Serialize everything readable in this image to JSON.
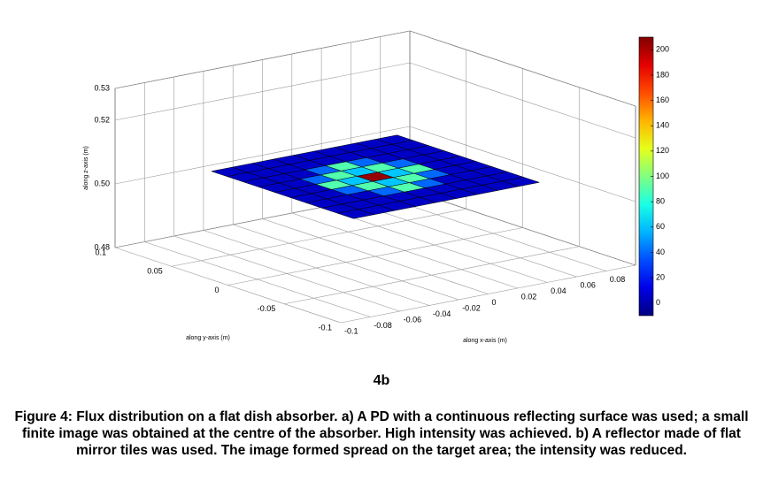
{
  "chart_data": {
    "type": "surface3d",
    "xlabel": "along x-axis (m)",
    "ylabel": "along y-axis (m)",
    "zlabel": "along z-axis (m)",
    "xlim": [
      -0.1,
      0.1
    ],
    "ylim": [
      -0.1,
      0.1
    ],
    "zlim": [
      0.48,
      0.53
    ],
    "xticks": [
      -0.1,
      -0.08,
      -0.06,
      -0.04,
      -0.02,
      0,
      0.02,
      0.04,
      0.06,
      0.08
    ],
    "yticks": [
      -0.1,
      -0.05,
      0,
      0.05,
      0.1
    ],
    "zticks": [
      0.48,
      {
        "value": 0.5,
        "label": "0.50"
      },
      0.52,
      0.53
    ],
    "x": [
      -0.056,
      -0.042,
      -0.028,
      -0.014,
      0,
      0.014,
      0.028,
      0.042,
      0.056
    ],
    "y": [
      -0.056,
      -0.042,
      -0.028,
      -0.014,
      0,
      0.014,
      0.028,
      0.042,
      0.056
    ],
    "z": 0.505,
    "values": [
      [
        5,
        5,
        5,
        5,
        5,
        5,
        5,
        5,
        5
      ],
      [
        5,
        5,
        5,
        5,
        5,
        5,
        5,
        5,
        5
      ],
      [
        5,
        5,
        5,
        40,
        90,
        40,
        5,
        5,
        5
      ],
      [
        5,
        5,
        40,
        90,
        60,
        90,
        40,
        5,
        5
      ],
      [
        5,
        5,
        90,
        60,
        205,
        60,
        90,
        5,
        5
      ],
      [
        5,
        5,
        40,
        90,
        60,
        90,
        40,
        5,
        5
      ],
      [
        5,
        5,
        5,
        40,
        90,
        40,
        5,
        5,
        5
      ],
      [
        5,
        5,
        5,
        5,
        5,
        5,
        5,
        5,
        5
      ],
      [
        5,
        5,
        5,
        5,
        5,
        5,
        5,
        5,
        5
      ]
    ],
    "colormap": "jet",
    "clim": [
      -10,
      210
    ],
    "cticks": [
      0,
      20,
      40,
      60,
      80,
      100,
      120,
      140,
      160,
      180,
      200
    ],
    "panel_label": "4b",
    "caption": "Figure 4: Flux distribution on a flat dish absorber. a) A PD with a continuous reflecting surface was used; a small finite image was obtained at the centre of the absorber. High intensity was achieved. b) A reflector made of flat mirror tiles was used. The image formed spread on the target area; the intensity was reduced."
  }
}
